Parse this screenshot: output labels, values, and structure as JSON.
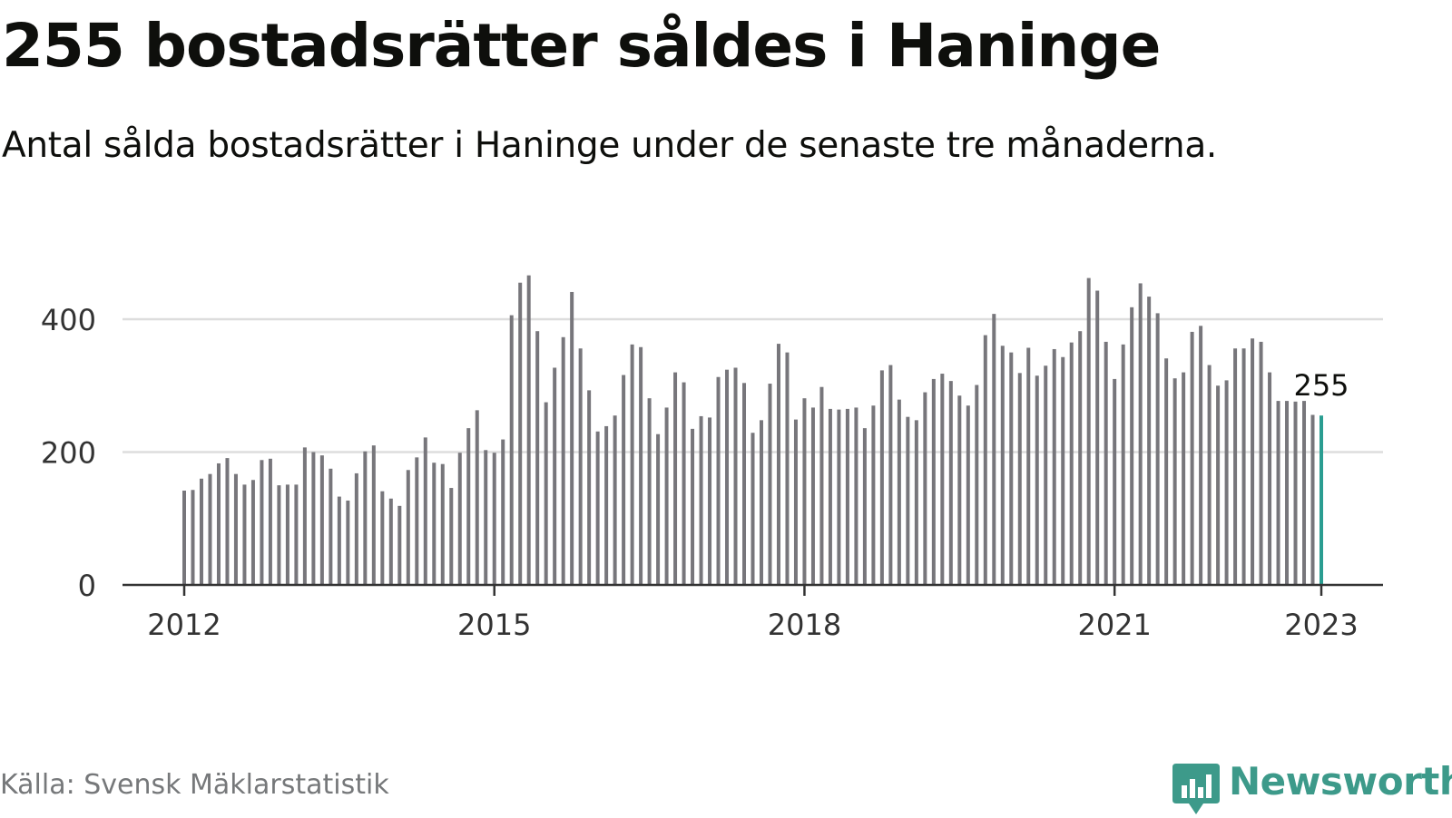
{
  "title": "255 bostadsrätter såldes i Haninge",
  "subtitle": "Antal sålda bostadsrätter i Haninge under de senaste tre månaderna.",
  "source": "Källa: Svensk Mäklarstatistik",
  "brand": "Newsworthy",
  "colors": {
    "bar": "#77767b",
    "highlight": "#2a9d91",
    "grid": "#dddddd",
    "axis": "#333333",
    "brand": "#3d9a8a"
  },
  "chart_data": {
    "type": "bar",
    "x_start": "2012-01",
    "x_end": "2023-01",
    "xticks": [
      "2012",
      "2015",
      "2018",
      "2021",
      "2023"
    ],
    "yticks": [
      "0",
      "200",
      "400"
    ],
    "ylim": [
      0,
      480
    ],
    "values": [
      142,
      143,
      160,
      167,
      183,
      191,
      167,
      151,
      158,
      188,
      190,
      150,
      151,
      151,
      207,
      200,
      195,
      175,
      133,
      127,
      168,
      201,
      210,
      141,
      130,
      119,
      173,
      192,
      222,
      184,
      182,
      146,
      199,
      236,
      263,
      203,
      199,
      219,
      406,
      455,
      466,
      382,
      275,
      327,
      373,
      441,
      356,
      293,
      231,
      239,
      255,
      316,
      362,
      358,
      281,
      227,
      267,
      320,
      305,
      235,
      254,
      252,
      313,
      324,
      327,
      304,
      229,
      248,
      303,
      363,
      350,
      249,
      281,
      267,
      298,
      265,
      264,
      265,
      267,
      236,
      270,
      323,
      331,
      279,
      253,
      248,
      290,
      310,
      318,
      307,
      285,
      270,
      301,
      376,
      408,
      360,
      350,
      319,
      357,
      315,
      330,
      355,
      343,
      365,
      382,
      462,
      443,
      366,
      310,
      362,
      418,
      454,
      434,
      409,
      341,
      311,
      320,
      381,
      390,
      331,
      300,
      308,
      356,
      356,
      371,
      366,
      320,
      277,
      277,
      276,
      277,
      256,
      255
    ],
    "highlight_label": "255"
  }
}
